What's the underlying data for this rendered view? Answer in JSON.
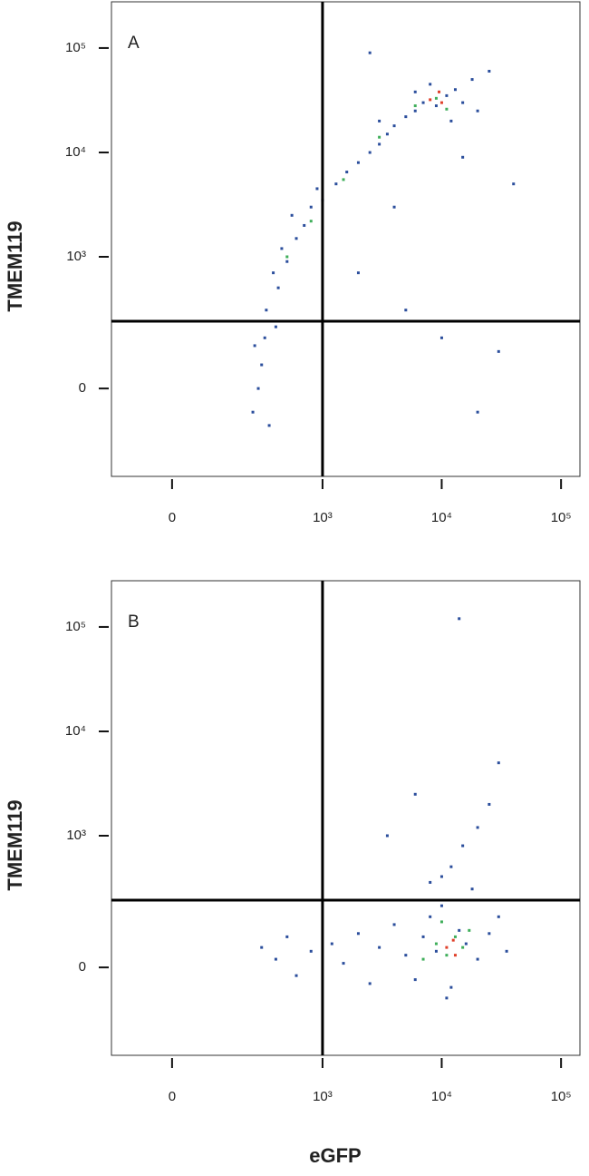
{
  "chart_data": [
    {
      "type": "scatter",
      "panel_label": "A",
      "ylabel": "TMEM119",
      "xscale": "asinh",
      "yscale": "asinh",
      "xlim": [
        -160,
        144000
      ],
      "ylim": [
        -374,
        277000
      ],
      "xticks": [
        0,
        {
          "value": 1000,
          "label": "10³"
        },
        {
          "value": 10000,
          "label": "10⁴"
        },
        {
          "value": 100000,
          "label": "10⁵"
        }
      ],
      "yticks": [
        0,
        {
          "value": 1000,
          "label": "10³"
        },
        {
          "value": 10000,
          "label": "10⁴"
        },
        {
          "value": 100000,
          "label": "10⁵"
        }
      ],
      "gates": {
        "x": 1000,
        "y": 230
      },
      "series": [
        {
          "color": "#2b4e9c",
          "x": [
            250,
            300,
            320,
            280,
            350,
            400,
            260,
            330,
            420,
            380,
            500,
            450,
            600,
            700,
            550,
            800,
            1000,
            900,
            1300,
            1600,
            2000,
            2500,
            3000,
            3500,
            4000,
            5000,
            6000,
            7000,
            9000,
            11000,
            13000,
            8000,
            15000,
            12000,
            20000,
            18000,
            6000,
            3000,
            2000,
            5000,
            10000,
            30000,
            20000,
            4000,
            15000,
            40000,
            25000,
            2500
          ],
          "y": [
            -60,
            60,
            150,
            0,
            -100,
            200,
            120,
            300,
            500,
            700,
            900,
            1200,
            1500,
            2000,
            2500,
            3000,
            3500,
            4500,
            5000,
            6500,
            8000,
            10000,
            12000,
            15000,
            18000,
            22000,
            25000,
            30000,
            28000,
            35000,
            40000,
            45000,
            30000,
            20000,
            25000,
            50000,
            38000,
            20000,
            700,
            300,
            150,
            100,
            -60,
            3000,
            9000,
            5000,
            60000,
            90000
          ]
        },
        {
          "color": "#3fae5a",
          "x": [
            1500,
            3000,
            6000,
            9000,
            11000,
            500,
            800
          ],
          "y": [
            5500,
            14000,
            28000,
            33000,
            26000,
            1000,
            2200
          ]
        },
        {
          "color": "#e0402a",
          "x": [
            8000,
            10000,
            9500
          ],
          "y": [
            32000,
            30000,
            38000
          ]
        }
      ]
    },
    {
      "type": "scatter",
      "panel_label": "B",
      "ylabel": "TMEM119",
      "xlabel": "eGFP",
      "xscale": "asinh",
      "yscale": "asinh",
      "xlim": [
        -160,
        144000
      ],
      "ylim": [
        -374,
        277000
      ],
      "xticks": [
        0,
        {
          "value": 1000,
          "label": "10³"
        },
        {
          "value": 10000,
          "label": "10⁴"
        },
        {
          "value": 100000,
          "label": "10⁵"
        }
      ],
      "yticks": [
        0,
        {
          "value": 1000,
          "label": "10³"
        },
        {
          "value": 10000,
          "label": "10⁴"
        },
        {
          "value": 100000,
          "label": "10⁵"
        }
      ],
      "gates": {
        "x": 1000,
        "y": 230
      },
      "series": [
        {
          "color": "#2b4e9c",
          "x": [
            300,
            400,
            500,
            600,
            800,
            1200,
            1500,
            2000,
            2500,
            3000,
            4000,
            5000,
            6000,
            7000,
            8000,
            9000,
            10000,
            12000,
            14000,
            16000,
            18000,
            20000,
            25000,
            30000,
            35000,
            12000,
            15000,
            20000,
            10000,
            8000,
            25000,
            30000,
            14000,
            6000,
            3500,
            11000
          ],
          "y": [
            50,
            20,
            80,
            -20,
            40,
            60,
            10,
            90,
            -40,
            50,
            120,
            30,
            -30,
            80,
            150,
            40,
            200,
            -50,
            100,
            60,
            300,
            20,
            90,
            150,
            40,
            500,
            800,
            1200,
            400,
            350,
            2000,
            5000,
            120000,
            2500,
            1000,
            -80
          ]
        },
        {
          "color": "#3fae5a",
          "x": [
            9000,
            11000,
            13000,
            15000,
            7000,
            17000,
            10000
          ],
          "y": [
            60,
            30,
            80,
            50,
            20,
            100,
            130
          ]
        },
        {
          "color": "#e0402a",
          "x": [
            11000,
            12500,
            13000
          ],
          "y": [
            50,
            70,
            30
          ]
        }
      ]
    }
  ]
}
